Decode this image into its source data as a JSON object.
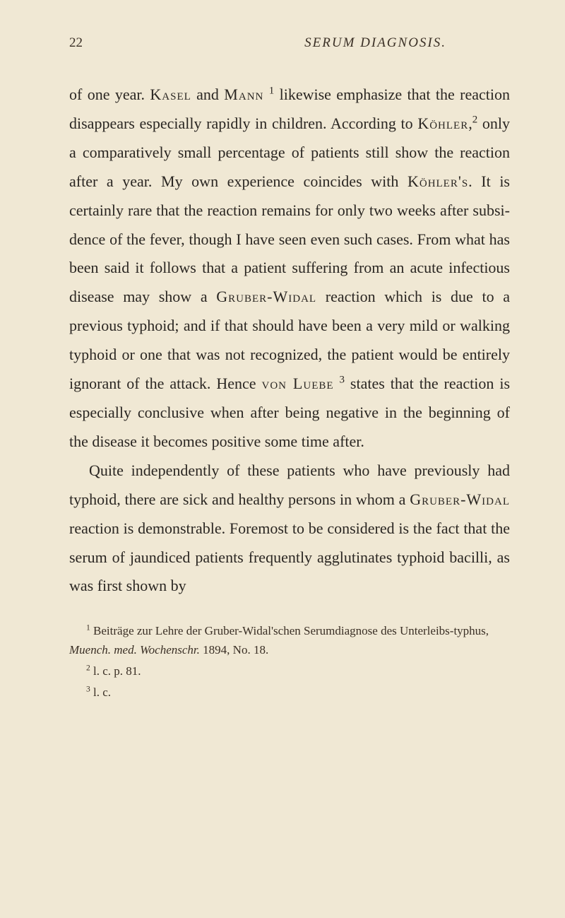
{
  "page_number": "22",
  "running_title": "SERUM DIAGNOSIS.",
  "paragraphs": {
    "p1_a": "of one year. ",
    "p1_name1": "Kasel",
    "p1_b": " and ",
    "p1_name2": "Mann",
    "p1_sup1": "1",
    "p1_c": " likewise empha­size that the reaction disappears especially rapidly in children. According to ",
    "p1_name3": "Köhler",
    "p1_d": ",",
    "p1_sup2": "2",
    "p1_e": " only a com­paratively small percentage of patients still show the reaction after a year. My own experience coin­cides with ",
    "p1_name4": "Köhler's",
    "p1_f": ". It is certainly rare that the reaction remains for only two weeks after subsi­dence of the fever, though I have seen even such cases. From what has been said it follows that a patient suffering from an acute infectious disease may show a ",
    "p1_name5": "Gruber-Widal",
    "p1_g": " reaction which is due to a previous typhoid; and if that should have been a very mild or walking typhoid or one that was not recognized, the patient would be entirely ignorant of the attack. Hence ",
    "p1_name6": "von Luebe",
    "p1_sup3": "3",
    "p1_h": " states that the reaction is especially conclusive when after being negative in the beginning of the disease it becomes positive some time after.",
    "p2_a": "Quite independently of these patients who have previously had typhoid, there are sick and healthy persons in whom a ",
    "p2_name1": "Gruber-Widal",
    "p2_b": " reaction is demonstrable. Foremost to be considered is the fact that the serum of jaundiced patients frequently agglutinates typhoid bacilli, as was first shown by"
  },
  "footnotes": {
    "fn1_sup": "1",
    "fn1_a": " Beiträge zur Lehre der Gruber-Widal'schen Serumdiagnose des Unterleibs-typhus, ",
    "fn1_italic": "Muench. med. Wochenschr.",
    "fn1_b": " 1894, No. 18.",
    "fn2_sup": "2",
    "fn2": " l. c. p. 81.",
    "fn3_sup": "3",
    "fn3": " l. c."
  }
}
